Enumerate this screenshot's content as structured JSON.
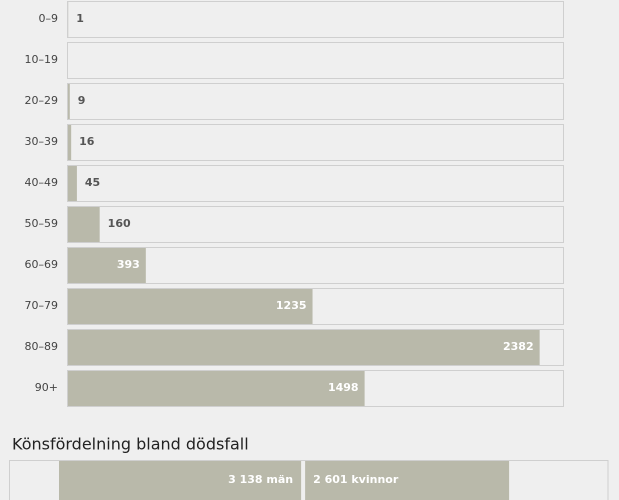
{
  "chart_data": [
    {
      "type": "hbar",
      "categories": [
        "0–9",
        "10–19",
        "20–29",
        "30–39",
        "40–49",
        "50–59",
        "60–69",
        "70–79",
        "80–89",
        "90+"
      ],
      "values": [
        1,
        0,
        9,
        16,
        45,
        160,
        393,
        1235,
        2382,
        1498
      ],
      "color": "#b9b9aa",
      "xlim": [
        0,
        2500
      ]
    },
    {
      "type": "split",
      "title": "Könsfördelning bland dödsfall",
      "series": [
        {
          "name": "män",
          "color": "#b9b9aa",
          "values": [
            3138
          ]
        },
        {
          "name": "kvinnor",
          "color": "#b9b9aa",
          "values": [
            2601
          ]
        }
      ],
      "value_labels": [
        "3 138 män",
        "2 601 kvinnor"
      ],
      "xlim": [
        0,
        7000
      ]
    }
  ]
}
